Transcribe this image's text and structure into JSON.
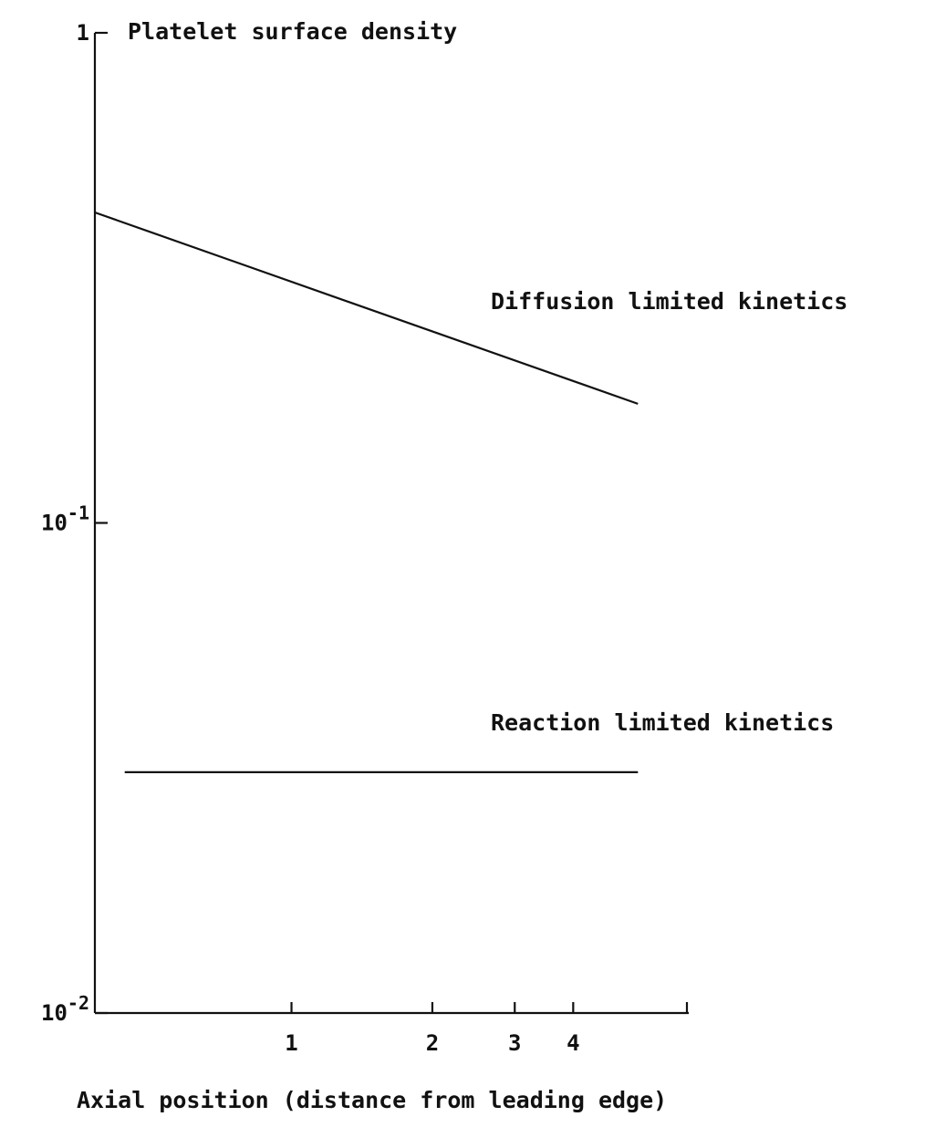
{
  "chart_data": {
    "type": "line",
    "title": "",
    "ylabel": "Platelet surface density",
    "xlabel": "Axial position (distance from leading edge)",
    "y_scale": "log",
    "ylim": [
      0.01,
      1
    ],
    "y_ticks": [
      {
        "value": 1,
        "base": "1",
        "exp": ""
      },
      {
        "value": 0.1,
        "base": "10",
        "exp": "-1"
      },
      {
        "value": 0.01,
        "base": "10",
        "exp": "-2"
      }
    ],
    "x_scale": "log",
    "xlim": [
      0.38,
      7.0
    ],
    "x_ticks": [
      {
        "value": 1,
        "label": "1"
      },
      {
        "value": 2,
        "label": "2"
      },
      {
        "value": 3,
        "label": "3"
      },
      {
        "value": 4,
        "label": "4"
      }
    ],
    "grid": false,
    "series": [
      {
        "name": "Diffusion limited kinetics",
        "x": [
          0.38,
          5.5
        ],
        "y": [
          0.43,
          0.175
        ]
      },
      {
        "name": "Reaction limited kinetics",
        "x": [
          0.44,
          5.5
        ],
        "y": [
          0.031,
          0.031
        ]
      }
    ]
  }
}
